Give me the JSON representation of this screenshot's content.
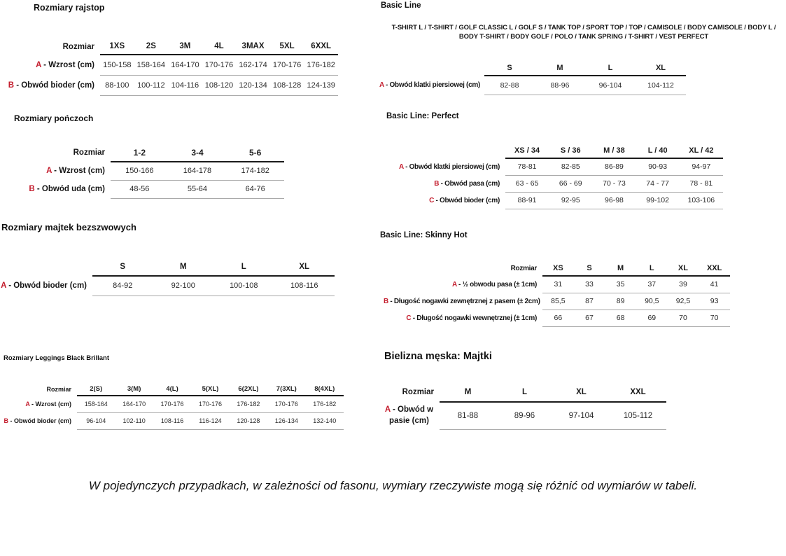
{
  "page": {
    "accent_red": "#c41e2e",
    "line_black": "#1b1b1b",
    "line_gray": "#a9a9a9",
    "footnote": "W pojedynczych przypadkach, w zależności od fasonu, wymiary rzeczywiste mogą się różnić od wymiarów w tabeli."
  },
  "sections": {
    "rajstopy": {
      "title": "Rozmiary rajstop",
      "table": {
        "size_label": "Rozmiar",
        "columns": [
          "1XS",
          "2S",
          "3M",
          "4L",
          "3MAX",
          "5XL",
          "6XXL"
        ],
        "rows": [
          {
            "letter": "A",
            "label": "Wzrost (cm)",
            "values": [
              "150-158",
              "158-164",
              "164-170",
              "170-176",
              "162-174",
              "170-176",
              "176-182"
            ]
          },
          {
            "letter": "B",
            "label": "Obwód bioder (cm)",
            "values": [
              "88-100",
              "100-112",
              "104-116",
              "108-120",
              "120-134",
              "108-128",
              "124-139"
            ]
          }
        ]
      }
    },
    "ponczochy": {
      "title": "Rozmiary pończoch",
      "table": {
        "size_label": "Rozmiar",
        "columns": [
          "1-2",
          "3-4",
          "5-6"
        ],
        "rows": [
          {
            "letter": "A",
            "label": "Wzrost (cm)",
            "values": [
              "150-166",
              "164-178",
              "174-182"
            ]
          },
          {
            "letter": "B",
            "label": "Obwód uda (cm)",
            "values": [
              "48-56",
              "55-64",
              "64-76"
            ]
          }
        ]
      }
    },
    "majtek_bezszwowe": {
      "title": "Rozmiary majtek bezszwowych",
      "table": {
        "size_label": "",
        "columns": [
          "S",
          "M",
          "L",
          "XL"
        ],
        "rows": [
          {
            "letter": "A",
            "label": "Obwód bioder (cm)",
            "values": [
              "84-92",
              "92-100",
              "100-108",
              "108-116"
            ]
          }
        ]
      }
    },
    "leggings": {
      "title": "Rozmiary Leggings Black Brillant",
      "table": {
        "size_label": "Rozmiar",
        "columns": [
          "2(S)",
          "3(M)",
          "4(L)",
          "5(XL)",
          "6(2XL)",
          "7(3XL)",
          "8(4XL)"
        ],
        "rows": [
          {
            "letter": "A",
            "label": "Wzrost (cm)",
            "values": [
              "158-164",
              "164-170",
              "170-176",
              "170-176",
              "176-182",
              "170-176",
              "176-182"
            ]
          },
          {
            "letter": "B",
            "label": "Obwód bioder (cm)",
            "values": [
              "96-104",
              "102-110",
              "108-116",
              "116-124",
              "120-128",
              "126-134",
              "132-140"
            ]
          }
        ]
      }
    },
    "basic_line": {
      "title": "Basic Line",
      "products": "T-SHIRT L / T-SHIRT / GOLF CLASSIC L / GOLF S / TANK TOP / SPORT TOP / TOP / CAMISOLE / BODY CAMISOLE / BODY L / BODY T-SHIRT / BODY GOLF / POLO / TANK SPRING / T-SHIRT / VEST PERFECT",
      "table": {
        "size_label": "",
        "columns": [
          "S",
          "M",
          "L",
          "XL"
        ],
        "rows": [
          {
            "letter": "A",
            "label": "Obwód klatki piersiowej (cm)",
            "values": [
              "82-88",
              "88-96",
              "96-104",
              "104-112"
            ]
          }
        ]
      }
    },
    "basic_perfect": {
      "title": "Basic Line: Perfect",
      "table": {
        "size_label": "",
        "columns": [
          "XS / 34",
          "S / 36",
          "M / 38",
          "L / 40",
          "XL / 42"
        ],
        "rows": [
          {
            "letter": "A",
            "label": "Obwód klatki piersiowej (cm)",
            "values": [
              "78-81",
              "82-85",
              "86-89",
              "90-93",
              "94-97"
            ]
          },
          {
            "letter": "B",
            "label": "Obwód pasa (cm)",
            "values": [
              "63 - 65",
              "66 - 69",
              "70 - 73",
              "74 - 77",
              "78 - 81"
            ]
          },
          {
            "letter": "C",
            "label": "Obwód bioder (cm)",
            "values": [
              "88-91",
              "92-95",
              "96-98",
              "99-102",
              "103-106"
            ]
          }
        ]
      }
    },
    "skinny_hot": {
      "title": "Basic Line: Skinny Hot",
      "table": {
        "size_label": "Rozmiar",
        "columns": [
          "XS",
          "S",
          "M",
          "L",
          "XL",
          "XXL"
        ],
        "rows": [
          {
            "letter": "A",
            "label": "½ obwodu pasa (± 1cm)",
            "values": [
              "31",
              "33",
              "35",
              "37",
              "39",
              "41"
            ]
          },
          {
            "letter": "B",
            "label": "Długość nogawki zewnętrznej z pasem (± 2cm)",
            "values": [
              "85,5",
              "87",
              "89",
              "90,5",
              "92,5",
              "93"
            ]
          },
          {
            "letter": "C",
            "label": "Długość nogawki wewnętrznej (± 1cm)",
            "values": [
              "66",
              "67",
              "68",
              "69",
              "70",
              "70"
            ]
          }
        ]
      }
    },
    "majtki_meskie": {
      "title": "Bielizna męska: Majtki",
      "table": {
        "size_label": "Rozmiar",
        "columns": [
          "M",
          "L",
          "XL",
          "XXL"
        ],
        "rows": [
          {
            "letter": "A",
            "label": "Obwód w pasie (cm)",
            "values": [
              "81-88",
              "89-96",
              "97-104",
              "105-112"
            ]
          }
        ]
      }
    }
  }
}
